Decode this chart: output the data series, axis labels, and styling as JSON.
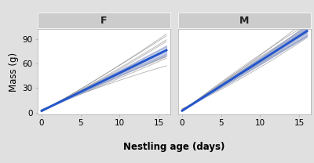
{
  "panels": [
    "F",
    "M"
  ],
  "xlabel": "Nestling age (days)",
  "ylabel": "Mass (g)",
  "xlim": [
    -0.5,
    16.5
  ],
  "ylim": [
    -2,
    102
  ],
  "xticks": [
    0,
    5,
    10,
    15
  ],
  "yticks": [
    0,
    30,
    60,
    90
  ],
  "background_color": "#ffffff",
  "panel_header_color": "#cccccc",
  "gray_line_color": "#888888",
  "blue_line_color": "#2255cc",
  "blue_ci_color": "#99aadd",
  "figure_facecolor": "#e0e0e0",
  "F_lines": [
    {
      "slope": 4.5,
      "intercept": 2.0,
      "quad": -0.02
    },
    {
      "slope": 4.8,
      "intercept": 1.5,
      "quad": 0.01
    },
    {
      "slope": 5.1,
      "intercept": 2.5,
      "quad": -0.03
    },
    {
      "slope": 4.2,
      "intercept": 3.0,
      "quad": 0.02
    },
    {
      "slope": 4.7,
      "intercept": 1.8,
      "quad": 0.0
    },
    {
      "slope": 4.3,
      "intercept": 2.2,
      "quad": -0.01
    },
    {
      "slope": 5.3,
      "intercept": 1.2,
      "quad": 0.04
    },
    {
      "slope": 4.6,
      "intercept": 2.8,
      "quad": -0.02
    },
    {
      "slope": 4.9,
      "intercept": 1.0,
      "quad": 0.03
    },
    {
      "slope": 4.0,
      "intercept": 3.5,
      "quad": -0.04
    },
    {
      "slope": 5.5,
      "intercept": 0.8,
      "quad": 0.02
    },
    {
      "slope": 3.8,
      "intercept": 3.2,
      "quad": 0.01
    },
    {
      "slope": 4.4,
      "intercept": 2.0,
      "quad": -0.01
    },
    {
      "slope": 5.0,
      "intercept": 1.5,
      "quad": 0.03
    }
  ],
  "F_mean_slope": 4.65,
  "F_mean_intercept": 2.0,
  "F_ci_lower_slope": 4.3,
  "F_ci_lower_intercept": 2.0,
  "F_ci_upper_slope": 5.0,
  "F_ci_upper_intercept": 2.0,
  "M_lines": [
    {
      "slope": 6.0,
      "intercept": 2.5,
      "quad": -0.02
    },
    {
      "slope": 5.5,
      "intercept": 3.0,
      "quad": 0.01
    },
    {
      "slope": 6.5,
      "intercept": 2.0,
      "quad": 0.03
    },
    {
      "slope": 5.8,
      "intercept": 3.5,
      "quad": -0.01
    },
    {
      "slope": 6.2,
      "intercept": 1.8,
      "quad": 0.02
    },
    {
      "slope": 7.0,
      "intercept": 2.2,
      "quad": -0.04
    },
    {
      "slope": 5.3,
      "intercept": 3.8,
      "quad": 0.05
    },
    {
      "slope": 6.8,
      "intercept": 1.5,
      "quad": -0.03
    },
    {
      "slope": 5.0,
      "intercept": 4.0,
      "quad": 0.04
    },
    {
      "slope": 7.5,
      "intercept": 1.0,
      "quad": -0.05
    },
    {
      "slope": 4.5,
      "intercept": 4.5,
      "quad": 0.06
    },
    {
      "slope": 6.3,
      "intercept": 2.8,
      "quad": -0.02
    },
    {
      "slope": 5.7,
      "intercept": 3.2,
      "quad": 0.01
    },
    {
      "slope": 6.1,
      "intercept": 2.0,
      "quad": 0.03
    },
    {
      "slope": 6.6,
      "intercept": 1.5,
      "quad": -0.02
    },
    {
      "slope": 5.9,
      "intercept": 2.5,
      "quad": 0.02
    }
  ],
  "M_mean_slope": 6.1,
  "M_mean_intercept": 2.2,
  "M_ci_lower_slope": 5.7,
  "M_ci_lower_intercept": 2.2,
  "M_ci_upper_slope": 6.5,
  "M_ci_upper_intercept": 2.2
}
